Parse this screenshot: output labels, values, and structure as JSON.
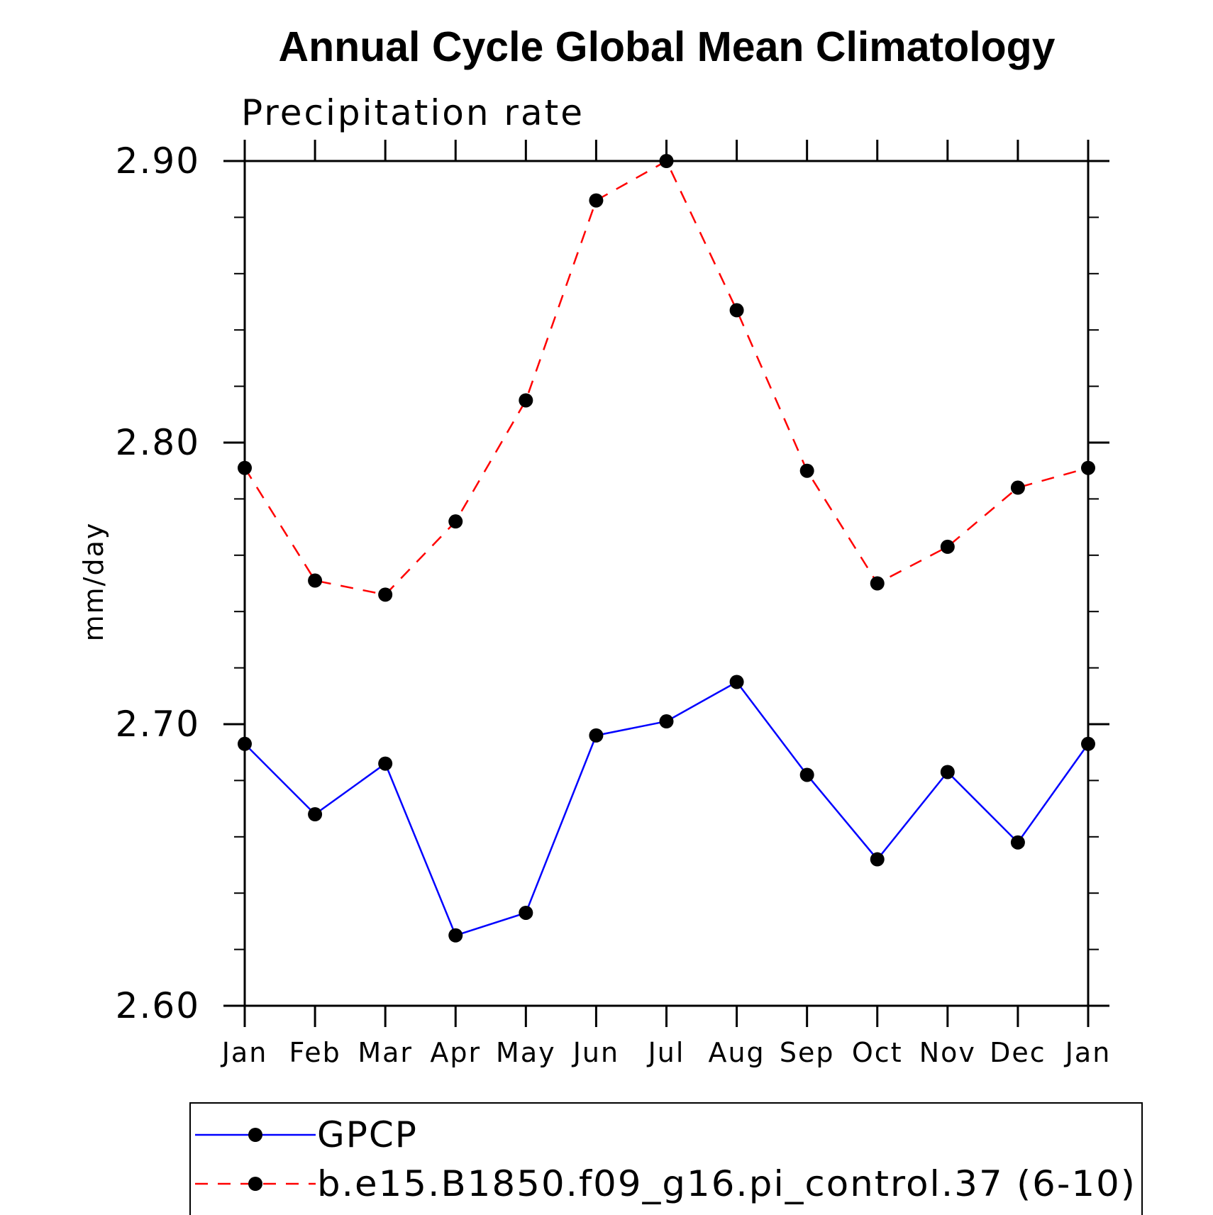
{
  "chart_data": {
    "type": "line",
    "title": "Annual Cycle Global Mean Climatology",
    "subtitle": "Precipitation rate",
    "xlabel": "",
    "ylabel": "mm/day",
    "categories": [
      "Jan",
      "Feb",
      "Mar",
      "Apr",
      "May",
      "Jun",
      "Jul",
      "Aug",
      "Sep",
      "Oct",
      "Nov",
      "Dec",
      "Jan"
    ],
    "ylim": [
      2.6,
      2.9
    ],
    "yticks": [
      2.6,
      2.7,
      2.8,
      2.9
    ],
    "ytick_labels": [
      "2.60",
      "2.70",
      "2.80",
      "2.90"
    ],
    "y_minor_step": 0.02,
    "grid": false,
    "legend_position": "bottom",
    "series": [
      {
        "name": "GPCP",
        "color": "#0000ff",
        "line_style": "solid",
        "marker": "filled-circle",
        "marker_color": "#000000",
        "values": [
          2.693,
          2.668,
          2.686,
          2.625,
          2.633,
          2.696,
          2.701,
          2.715,
          2.682,
          2.652,
          2.683,
          2.658,
          2.693
        ]
      },
      {
        "name": "b.e15.B1850.f09_g16.pi_control.37 (6-10)",
        "color": "#ff0000",
        "line_style": "dashed",
        "marker": "filled-circle",
        "marker_color": "#000000",
        "values": [
          2.791,
          2.751,
          2.746,
          2.772,
          2.815,
          2.886,
          2.9,
          2.847,
          2.79,
          2.75,
          2.763,
          2.784,
          2.791
        ]
      }
    ]
  }
}
